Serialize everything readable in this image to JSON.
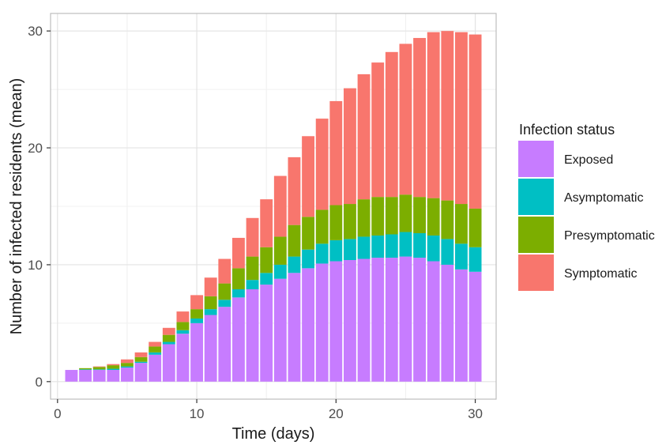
{
  "chart_data": {
    "type": "bar",
    "stacked": true,
    "title": "",
    "xlabel": "Time (days)",
    "ylabel": "Number of infected residents (mean)",
    "xlim": [
      -0.5,
      31.5
    ],
    "ylim": [
      -1.5,
      31.5
    ],
    "xticks": [
      0,
      10,
      20,
      30
    ],
    "yticks": [
      0,
      10,
      20,
      30
    ],
    "grid": true,
    "legend_position": "right",
    "legend_title": "Infection status",
    "x": [
      1,
      2,
      3,
      4,
      5,
      6,
      7,
      8,
      9,
      10,
      11,
      12,
      13,
      14,
      15,
      16,
      17,
      18,
      19,
      20,
      21,
      22,
      23,
      24,
      25,
      26,
      27,
      28,
      29,
      30
    ],
    "series": [
      {
        "name": "Exposed",
        "color": "#C77CFF",
        "values": [
          1.0,
          1.0,
          1.0,
          1.0,
          1.2,
          1.6,
          2.3,
          3.2,
          4.1,
          5.0,
          5.7,
          6.4,
          7.2,
          7.9,
          8.3,
          8.8,
          9.3,
          9.7,
          10.1,
          10.3,
          10.4,
          10.5,
          10.6,
          10.6,
          10.7,
          10.6,
          10.3,
          10.0,
          9.6,
          9.4
        ]
      },
      {
        "name": "Asymptomatic",
        "color": "#00BFC4",
        "values": [
          0.0,
          0.05,
          0.05,
          0.1,
          0.1,
          0.1,
          0.2,
          0.2,
          0.3,
          0.4,
          0.5,
          0.6,
          0.7,
          0.8,
          1.0,
          1.2,
          1.4,
          1.6,
          1.7,
          1.8,
          1.8,
          1.9,
          1.9,
          2.0,
          2.1,
          2.1,
          2.2,
          2.2,
          2.2,
          2.1
        ]
      },
      {
        "name": "Presymptomatic",
        "color": "#7CAE00",
        "values": [
          0.0,
          0.1,
          0.2,
          0.3,
          0.3,
          0.4,
          0.5,
          0.6,
          0.7,
          0.8,
          1.1,
          1.4,
          1.8,
          2.0,
          2.2,
          2.4,
          2.7,
          2.8,
          2.9,
          3.0,
          3.0,
          3.2,
          3.3,
          3.2,
          3.2,
          3.1,
          3.2,
          3.3,
          3.4,
          3.3
        ]
      },
      {
        "name": "Symptomatic",
        "color": "#F8766D",
        "values": [
          0.0,
          0.0,
          0.05,
          0.1,
          0.3,
          0.4,
          0.4,
          0.6,
          0.9,
          1.2,
          1.6,
          2.1,
          2.6,
          3.3,
          4.1,
          5.2,
          5.8,
          6.9,
          7.8,
          8.9,
          9.9,
          10.7,
          11.5,
          12.4,
          12.9,
          13.6,
          14.2,
          14.5,
          14.7,
          14.9
        ]
      }
    ]
  }
}
